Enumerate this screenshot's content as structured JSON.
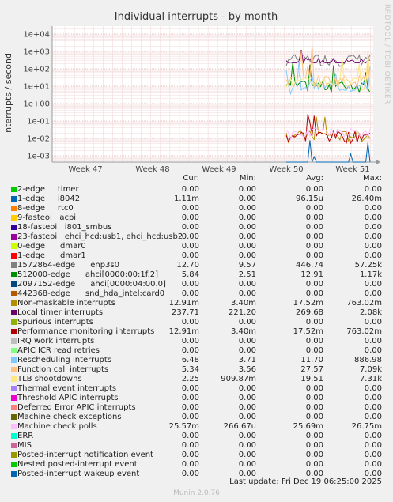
{
  "chart_data": {
    "type": "line",
    "title": "Individual interrupts - by month",
    "ylabel": "interrupts / second",
    "yscale": "log",
    "ylim": [
      0.0005,
      50000
    ],
    "y_ticks": [
      "1e-03",
      "1e-02",
      "1e-01",
      "1e+00",
      "1e+01",
      "1e+02",
      "1e+03",
      "1e+04"
    ],
    "x_ticks": [
      "Week 47",
      "Week 48",
      "Week 49",
      "Week 50",
      "Week 51"
    ],
    "grid": true,
    "columns": [
      "Cur:",
      "Min:",
      "Avg:",
      "Max:"
    ],
    "series": [
      {
        "name": "2-edge     timer",
        "color": "#00cc00",
        "cur": "0.00",
        "min": "0.00",
        "avg": "0.00",
        "max": "0.00"
      },
      {
        "name": "1-edge     i8042",
        "color": "#0066b3",
        "cur": "1.11m",
        "min": "0.00",
        "avg": "96.15u",
        "max": "26.40m"
      },
      {
        "name": "8-edge     rtc0",
        "color": "#ff8000",
        "cur": "0.00",
        "min": "0.00",
        "avg": "0.00",
        "max": "0.00"
      },
      {
        "name": "9-fasteoi   acpi",
        "color": "#ffcc00",
        "cur": "0.00",
        "min": "0.00",
        "avg": "0.00",
        "max": "0.00"
      },
      {
        "name": "18-fasteoi   i801_smbus",
        "color": "#330099",
        "cur": "0.00",
        "min": "0.00",
        "avg": "0.00",
        "max": "0.00"
      },
      {
        "name": "23-fasteoi   ehci_hcd:usb1, ehci_hcd:usb2",
        "color": "#990099",
        "cur": "0.00",
        "min": "0.00",
        "avg": "0.00",
        "max": "0.00"
      },
      {
        "name": "0-edge      dmar0",
        "color": "#ccff00",
        "cur": "0.00",
        "min": "0.00",
        "avg": "0.00",
        "max": "0.00"
      },
      {
        "name": "1-edge      dmar1",
        "color": "#ff0000",
        "cur": "0.00",
        "min": "0.00",
        "avg": "0.00",
        "max": "0.00"
      },
      {
        "name": "1572864-edge      enp3s0",
        "color": "#808080",
        "cur": "12.70",
        "min": "9.57",
        "avg": "446.74",
        "max": "57.25k"
      },
      {
        "name": "512000-edge      ahci[0000:00:1f.2]",
        "color": "#008f00",
        "cur": "5.84",
        "min": "2.51",
        "avg": "12.91",
        "max": "1.17k"
      },
      {
        "name": "2097152-edge      ahci[0000:04:00.0]",
        "color": "#00487d",
        "cur": "0.00",
        "min": "0.00",
        "avg": "0.00",
        "max": "0.00"
      },
      {
        "name": "442368-edge      snd_hda_intel:card0",
        "color": "#b35a00",
        "cur": "0.00",
        "min": "0.00",
        "avg": "0.00",
        "max": "0.00"
      },
      {
        "name": "Non-maskable interrupts",
        "color": "#b38f00",
        "cur": "12.91m",
        "min": "3.40m",
        "avg": "17.52m",
        "max": "763.02m"
      },
      {
        "name": "Local timer interrupts",
        "color": "#6b006b",
        "cur": "237.71",
        "min": "221.20",
        "avg": "269.68",
        "max": "2.08k"
      },
      {
        "name": "Spurious interrupts",
        "color": "#8fb300",
        "cur": "0.00",
        "min": "0.00",
        "avg": "0.00",
        "max": "0.00"
      },
      {
        "name": "Performance monitoring interrupts",
        "color": "#b30000",
        "cur": "12.91m",
        "min": "3.40m",
        "avg": "17.52m",
        "max": "763.02m"
      },
      {
        "name": "IRQ work interrupts",
        "color": "#bebebe",
        "cur": "0.00",
        "min": "0.00",
        "avg": "0.00",
        "max": "0.00"
      },
      {
        "name": "APIC ICR read retries",
        "color": "#80ff80",
        "cur": "0.00",
        "min": "0.00",
        "avg": "0.00",
        "max": "0.00"
      },
      {
        "name": "Rescheduling interrupts",
        "color": "#80c9ff",
        "cur": "6.48",
        "min": "3.71",
        "avg": "11.70",
        "max": "886.98"
      },
      {
        "name": "Function call interrupts",
        "color": "#ffc080",
        "cur": "5.34",
        "min": "3.56",
        "avg": "27.57",
        "max": "7.09k"
      },
      {
        "name": "TLB shootdowns",
        "color": "#ffe680",
        "cur": "2.25",
        "min": "909.87m",
        "avg": "19.51",
        "max": "7.31k"
      },
      {
        "name": "Thermal event interrupts",
        "color": "#aa80ff",
        "cur": "0.00",
        "min": "0.00",
        "avg": "0.00",
        "max": "0.00"
      },
      {
        "name": "Threshold APIC interrupts",
        "color": "#ee00cc",
        "cur": "0.00",
        "min": "0.00",
        "avg": "0.00",
        "max": "0.00"
      },
      {
        "name": "Deferred Error APIC interrupts",
        "color": "#ff8080",
        "cur": "0.00",
        "min": "0.00",
        "avg": "0.00",
        "max": "0.00"
      },
      {
        "name": "Machine check exceptions",
        "color": "#666600",
        "cur": "0.00",
        "min": "0.00",
        "avg": "0.00",
        "max": "0.00"
      },
      {
        "name": "Machine check polls",
        "color": "#ffbfff",
        "cur": "25.57m",
        "min": "266.67u",
        "avg": "25.69m",
        "max": "26.75m"
      },
      {
        "name": "ERR",
        "color": "#00ffcc",
        "cur": "0.00",
        "min": "0.00",
        "avg": "0.00",
        "max": "0.00"
      },
      {
        "name": "MIS",
        "color": "#cc6699",
        "cur": "0.00",
        "min": "0.00",
        "avg": "0.00",
        "max": "0.00"
      },
      {
        "name": "Posted-interrupt notification event",
        "color": "#999900",
        "cur": "0.00",
        "min": "0.00",
        "avg": "0.00",
        "max": "0.00"
      },
      {
        "name": "Nested posted-interrupt event",
        "color": "#00cc00",
        "cur": "0.00",
        "min": "0.00",
        "avg": "0.00",
        "max": "0.00"
      },
      {
        "name": "Posted-interrupt wakeup event",
        "color": "#0066b3",
        "cur": "0.00",
        "min": "0.00",
        "avg": "0.00",
        "max": "0.00"
      }
    ]
  },
  "footer": {
    "last_update": "Last update: Fri Dec 19 06:25:00 2025",
    "munin_version": "Munin 2.0.76",
    "rrdtool_credit": "RRDTOOL / TOBI OETIKER"
  }
}
